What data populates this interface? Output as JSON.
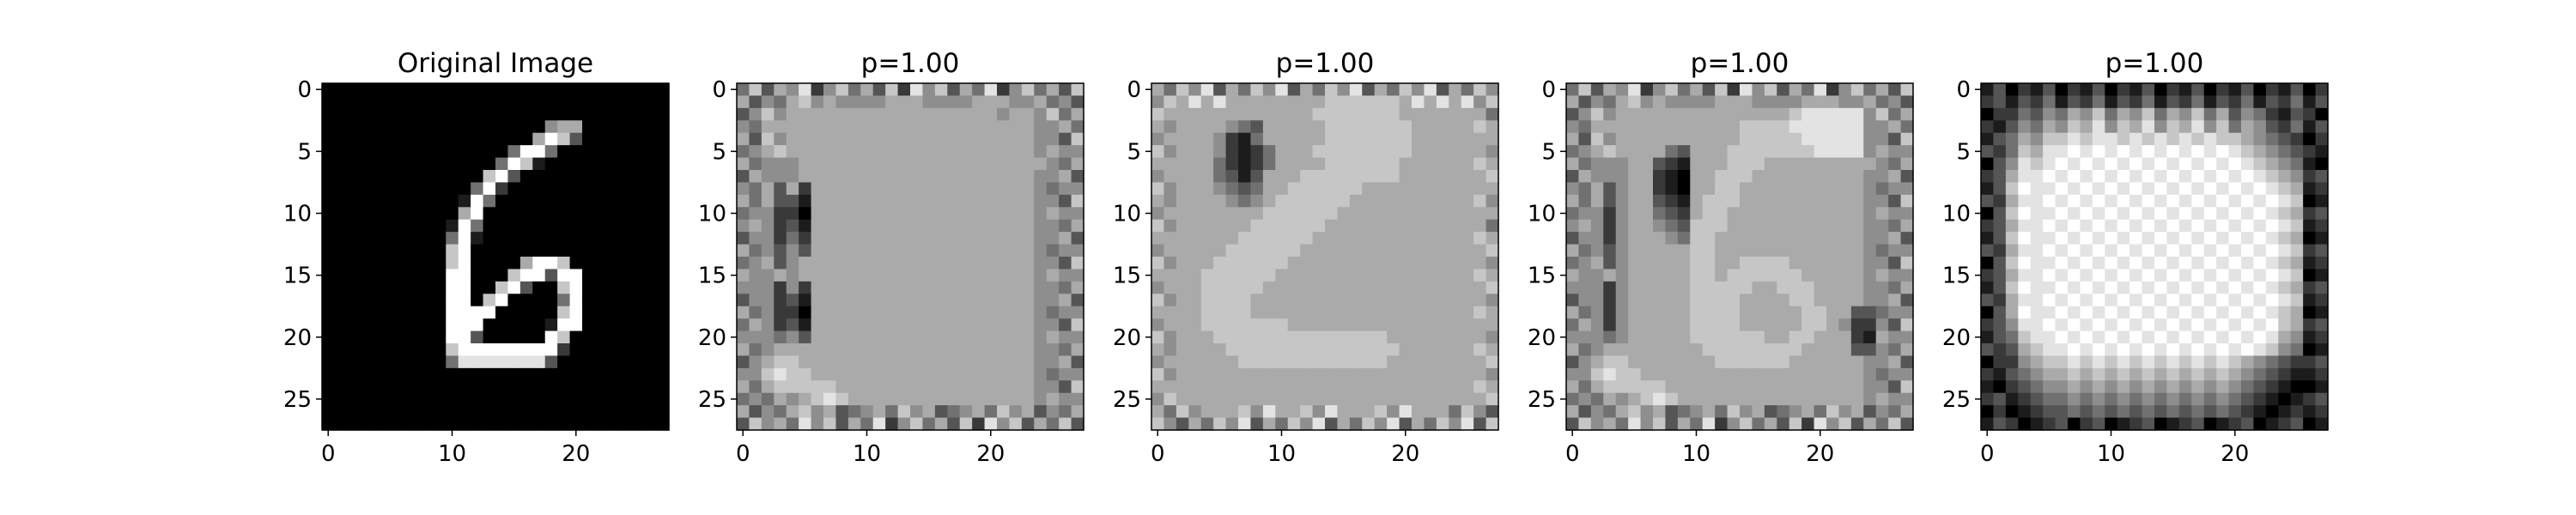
{
  "chart_data": [
    {
      "type": "heatmap",
      "title": "Original Image",
      "colormap": "gray",
      "xlim": [
        0,
        27
      ],
      "ylim": [
        27,
        0
      ],
      "xticks": [
        "0",
        "10",
        "20"
      ],
      "yticks": [
        "0",
        "5",
        "10",
        "15",
        "20",
        "25"
      ],
      "rows": [
        "0000000000000000000000000000",
        "0000000000000000000000000000",
        "0000000000000000000000000000",
        "0000000000000000005660000000",
        "0000000000000000069730000000",
        "0000000000000004994000000000",
        "0000000000000049710000000000",
        "0000000000000793000000000000",
        "0000000000004920000000000000",
        "0000000000019400000000000000",
        "0000000000069000000000000000",
        "0000000000194000000000000000",
        "0000000000491000000000000000",
        "0000000000790000000000000000",
        "0000000000790000699700000000",
        "0000000000990007993990000000",
        "0000000000990079300790000000",
        "0000000000990790000490000000",
        "0000000000999900000790000000",
        "0000000000999000001990000000",
        "0000000000993000009700000000",
        "0000000000799999999200000000",
        "0000000000488888883000000000",
        "0000000000000000000000000000",
        "0000000000000000000000000000",
        "0000000000000000000000000000",
        "0000000000000000000000000000",
        "0000000000000000000000000000"
      ]
    },
    {
      "type": "heatmap",
      "title": "p=1.00",
      "colormap": "gray",
      "xlim": [
        0,
        27
      ],
      "ylim": [
        27,
        0
      ],
      "xticks": [
        "0",
        "10",
        "20"
      ],
      "yticks": [
        "0",
        "5",
        "10",
        "15",
        "20",
        "25"
      ],
      "rows": [
        "4736582574637285736482574637",
        "6354675655556665555666556453",
        "3575666666666666666665665746",
        "5466666666666666666666665564",
        "6375666666666666666666665537",
        "4567666666666666666666665655",
        "6455566666666666666666666546",
        "3655566666666666666666665563",
        "5463626666666666666666665455",
        "6463316666666666666666665537",
        "4552206666666666666666665655",
        "5652316666666666666666665546",
        "3552426666666666666666665563",
        "6453536666666666666666665455",
        "4563566666666666666666665537",
        "6556566666666666666666665655",
        "5552526666666666666666665546",
        "3552316666666666666666665563",
        "6452206666666666666666665455",
        "4652316666666666666666665537",
        "5554536666666666666666665655",
        "6456666666666666666666665546",
        "3567766666666666666666665563",
        "5578776666666666666666665455",
        "6467777766666666666666665537",
        "4546567876666666666666665655",
        "6354675634564756345647563546",
        "3756485736482574637285736473"
      ]
    },
    {
      "type": "heatmap",
      "title": "p=1.00",
      "colormap": "gray",
      "xlim": [
        0,
        27
      ],
      "ylim": [
        27,
        0
      ],
      "xticks": [
        "0",
        "10",
        "20"
      ],
      "yticks": [
        "0",
        "5",
        "10",
        "15",
        "20",
        "25"
      ],
      "rows": [
        "6475836475836475836475836475",
        "5768686666666677777768686857",
        "7666666666666777777766666664",
        "6566665436666677777776666676",
        "5666652146666677777776666666",
        "7566652124666777777776666665",
        "6666642124666677777766666676",
        "5666643136667777777766666667",
        "7566654346677777766666666666",
        "6566665456777777666666666675",
        "5666666667777776666666666666",
        "7566666677777766666666666664",
        "6666666777777666666666666676",
        "5666667777776666666666666667",
        "7566677777766666666666666665",
        "6666777777666666666666666676",
        "5666777776666666666666666667",
        "7566777766666666666666666665",
        "6666777766666666666666666676",
        "5666777777766666666666666666",
        "7566677777777777777666666665",
        "6566667777777777777766666676",
        "5666666777777777777666666667",
        "7566666666666666666666666665",
        "6666666666666666666666666676",
        "5766666666666666666666666667",
        "6475666758667586667586664753",
        "7536475836475836475836475837"
      ]
    },
    {
      "type": "heatmap",
      "title": "p=1.00",
      "colormap": "gray",
      "xlim": [
        0,
        27
      ],
      "ylim": [
        27,
        0
      ],
      "xticks": [
        "0",
        "10",
        "20"
      ],
      "yticks": [
        "0",
        "5",
        "10",
        "15",
        "20",
        "25"
      ],
      "rows": [
        "4736582574637285736482574637",
        "6354675655556665555666556453",
        "3575666666666666667888885746",
        "5466666666666677778888885564",
        "6375666666666677777888885537",
        "4567666643666777777788885655",
        "6455566321666777666666666546",
        "3655566210667776666666665563",
        "5463566210667766666666665455",
        "6463566321677766666666665537",
        "4552566432677666666666665655",
        "5652566543777666666666665546",
        "3552566654776666666666665563",
        "6453566666776666666666665455",
        "4563566666776677776666665537",
        "6556566666776777777666665655",
        "5552566666777776677766665546",
        "3552566666777766667766665563",
        "6452566666777766666776633455",
        "4652566666777766666776522537",
        "5554566666777777667766621655",
        "6456666666677777777666633546",
        "3567766666667777776666665563",
        "5578776666666666666666665455",
        "6467777766666666666666665537",
        "4546567876666666666666665655",
        "6354675634564756345647563546",
        "3756485736482574637285736473"
      ]
    },
    {
      "type": "heatmap",
      "title": "p=1.00",
      "colormap": "gray",
      "xlim": [
        0,
        27
      ],
      "ylim": [
        27,
        0
      ],
      "xticks": [
        "0",
        "10",
        "20"
      ],
      "yticks": [
        "0",
        "5",
        "10",
        "15",
        "20",
        "25"
      ],
      "rows": [
        "1302130213021302130213021302",
        "2313241324132413241324132413",
        "0224354657465746574635421320",
        "2135465768576857685746532413",
        "1346577878878787878776543202",
        "3247688989898989898987654321",
        "0358789898989898989898765410",
        "2368898989898989898989876523",
        "1379889898989898989898987612",
        "3268898989898989898989898701",
        "0379889898989898989898987623",
        "2368898989898989898989898712",
        "1379889898989898989898987601",
        "3268898989898989898989898723",
        "0379889898989898989898987612",
        "2368898989898989898989898701",
        "1379889898989898989898987623",
        "3268898989898989898989898712",
        "0369889898989898989898987601",
        "2358898989898989898989897623",
        "1347889898989898989898986512",
        "3236788989898989898989875401",
        "0225677878787878787876543223",
        "2134566767676767676765432112",
        "1023455656565656565654321001",
        "2312344545454545454543210123",
        "0201233434343434343432101212",
        "1320123023012301230123012301"
      ]
    }
  ]
}
